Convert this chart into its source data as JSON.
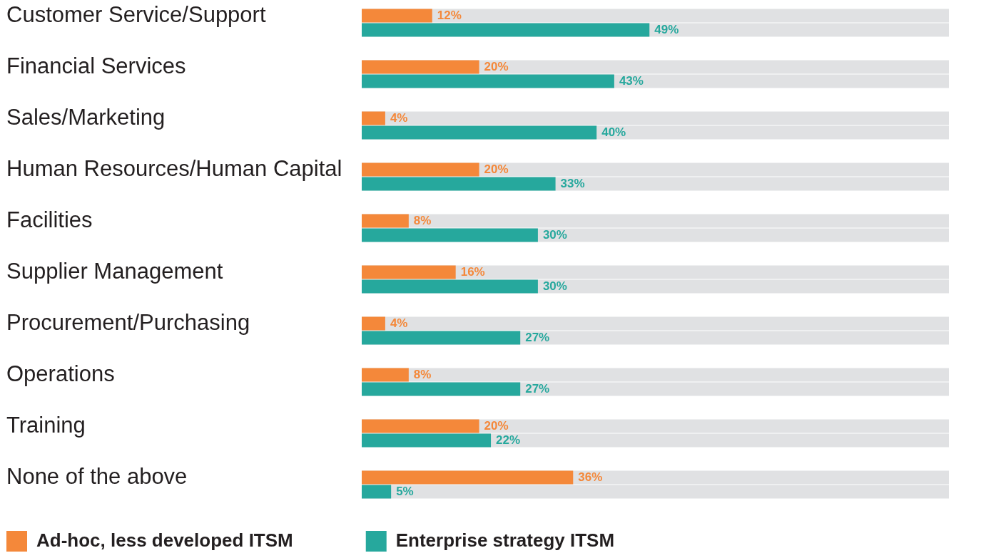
{
  "chart_data": {
    "type": "bar",
    "orientation": "horizontal",
    "categories": [
      "Customer Service/Support",
      "Financial Services",
      "Sales/Marketing",
      "Human Resources/Human Capital",
      "Facilities",
      "Supplier Management",
      "Procurement/Purchasing",
      "Operations",
      "Training",
      "None of the above"
    ],
    "series": [
      {
        "name": "Ad-hoc, less developed ITSM",
        "color": "#f4883a",
        "values": [
          12,
          20,
          4,
          20,
          8,
          16,
          4,
          8,
          20,
          36
        ],
        "value_labels": [
          "12%",
          "20%",
          "4%",
          "20%",
          "8%",
          "16%",
          "4%",
          "8%",
          "20%",
          "36%"
        ]
      },
      {
        "name": "Enterprise strategy ITSM",
        "color": "#26a89d",
        "values": [
          49,
          43,
          40,
          33,
          30,
          30,
          27,
          27,
          22,
          5
        ],
        "value_labels": [
          "49%",
          "43%",
          "40%",
          "33%",
          "30%",
          "30%",
          "27%",
          "27%",
          "22%",
          "5%"
        ]
      }
    ],
    "xlim": [
      0,
      100
    ],
    "grid": false,
    "legend": "bottom left",
    "tick_labels": "y"
  }
}
